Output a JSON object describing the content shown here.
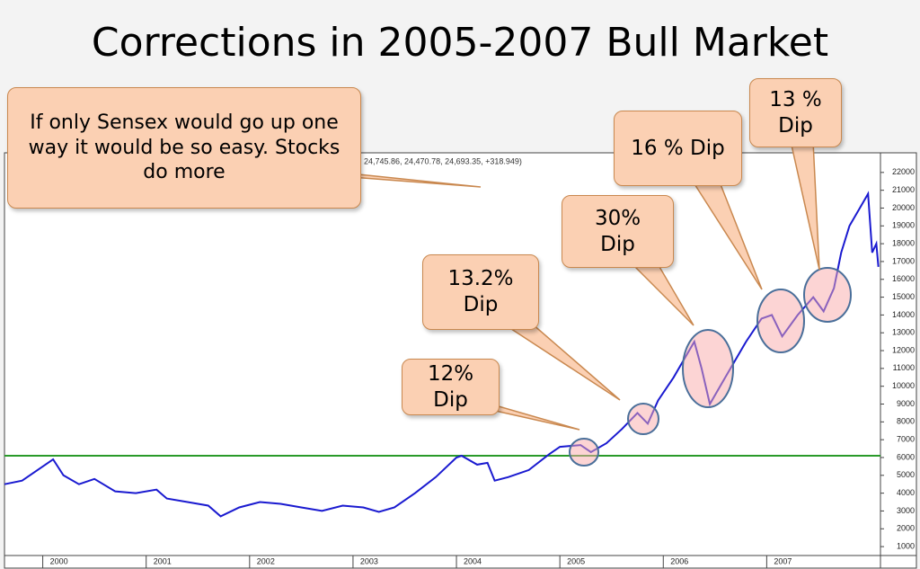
{
  "chart_data": {
    "type": "line",
    "title": "Corrections in 2005-2007 Bull Market",
    "ohlc_text": "24,745.86, 24,470.78, 24,693.35, +318.949)",
    "series": [
      {
        "name": "Sensex",
        "color": "#1a1ad0",
        "x": [
          1999.63,
          1999.8,
          2000.0,
          2000.1,
          2000.2,
          2000.35,
          2000.5,
          2000.7,
          2000.9,
          2001.1,
          2001.2,
          2001.4,
          2001.6,
          2001.72,
          2001.9,
          2002.1,
          2002.3,
          2002.5,
          2002.7,
          2002.9,
          2003.1,
          2003.25,
          2003.4,
          2003.6,
          2003.8,
          2004.0,
          2004.05,
          2004.2,
          2004.3,
          2004.37,
          2004.5,
          2004.7,
          2004.9,
          2005.0,
          2005.2,
          2005.3,
          2005.45,
          2005.6,
          2005.75,
          2005.85,
          2005.95,
          2006.1,
          2006.3,
          2006.37,
          2006.45,
          2006.6,
          2006.8,
          2006.95,
          2007.05,
          2007.15,
          2007.3,
          2007.45,
          2007.55,
          2007.65,
          2007.72,
          2007.8,
          2007.9,
          2007.98,
          2008.02,
          2008.06,
          2008.08
        ],
        "values": [
          4500,
          4700,
          5500,
          5900,
          5000,
          4500,
          4800,
          4100,
          4000,
          4200,
          3700,
          3500,
          3300,
          2700,
          3200,
          3500,
          3400,
          3200,
          3000,
          3300,
          3200,
          2950,
          3200,
          4000,
          4900,
          6000,
          6100,
          5600,
          5700,
          4700,
          4900,
          5300,
          6200,
          6600,
          6700,
          6300,
          6800,
          7600,
          8500,
          7900,
          9200,
          10500,
          12500,
          11000,
          9000,
          10500,
          12500,
          13800,
          14000,
          12800,
          14000,
          15000,
          14200,
          15500,
          17500,
          19000,
          20000,
          20800,
          17500,
          18000,
          16700
        ]
      }
    ],
    "reference_line": {
      "value": 6100,
      "color": "#2a9a2a"
    },
    "annotations": [
      "If only Sensex would go up one way it would be so easy. Stocks do more",
      "12% Dip",
      "13.2% Dip",
      "30% Dip",
      "16 % Dip",
      "13 % Dip"
    ],
    "xlim": [
      1999.63,
      2008.1
    ],
    "xticks": [
      2000,
      2001,
      2002,
      2003,
      2004,
      2005,
      2006,
      2007
    ],
    "ylim": [
      500,
      23000
    ],
    "yticks": [
      1000,
      2000,
      3000,
      4000,
      5000,
      6000,
      7000,
      8000,
      9000,
      10000,
      11000,
      12000,
      13000,
      14000,
      15000,
      16000,
      17000,
      18000,
      19000,
      20000,
      21000,
      22000
    ]
  }
}
